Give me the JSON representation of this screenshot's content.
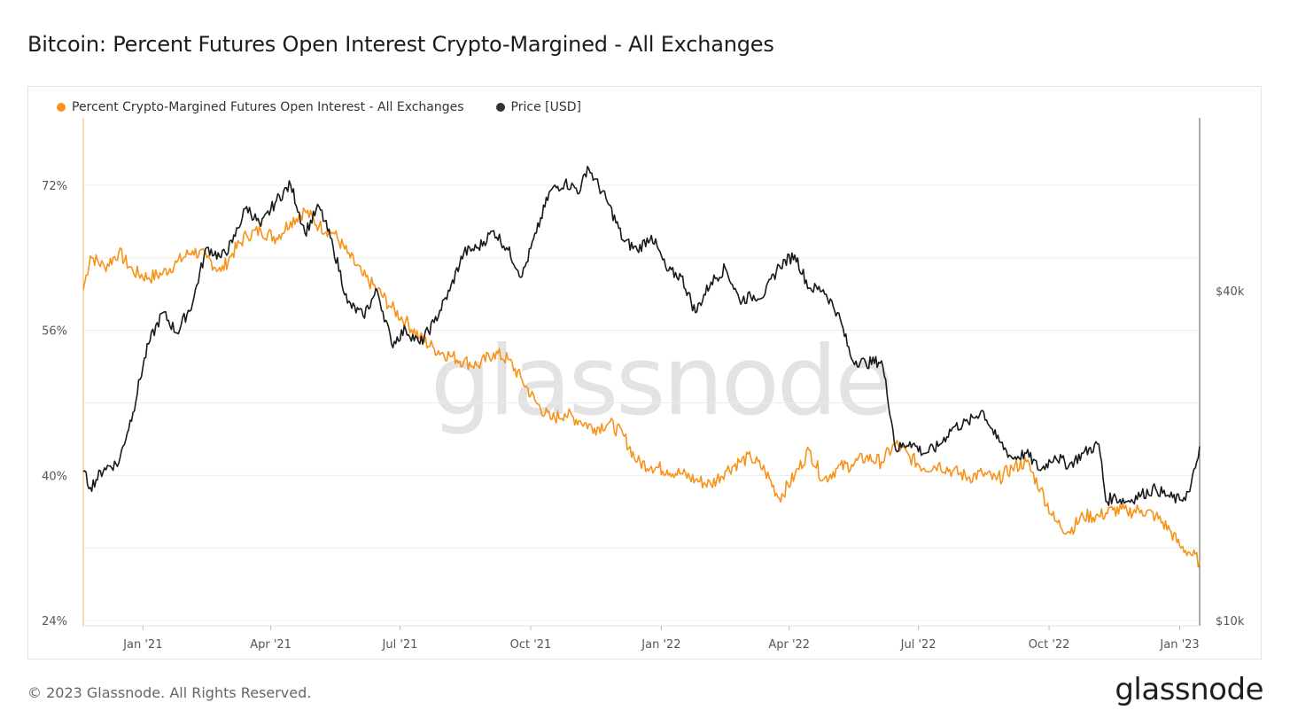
{
  "page": {
    "title": "Bitcoin: Percent Futures Open Interest Crypto-Margined - All Exchanges",
    "footer": "© 2023 Glassnode. All Rights Reserved.",
    "logo": "glassnode",
    "watermark": "glassnode"
  },
  "colors": {
    "oi_series": "#f7931a",
    "price_series": "#1a1a1a",
    "grid": "#ececec",
    "axis_text": "#555555"
  },
  "chart_data": {
    "type": "line",
    "title": "Bitcoin: Percent Futures Open Interest Crypto-Margined - All Exchanges",
    "legend_position": "top-left",
    "grid": true,
    "x_range": [
      "2020-11-20",
      "2023-01-15"
    ],
    "x_ticks": [
      {
        "date": "2021-01-01",
        "label": "Jan '21"
      },
      {
        "date": "2021-04-01",
        "label": "Apr '21"
      },
      {
        "date": "2021-07-01",
        "label": "Jul '21"
      },
      {
        "date": "2021-10-01",
        "label": "Oct '21"
      },
      {
        "date": "2022-01-01",
        "label": "Jan '22"
      },
      {
        "date": "2022-04-01",
        "label": "Apr '22"
      },
      {
        "date": "2022-07-01",
        "label": "Jul '22"
      },
      {
        "date": "2022-10-01",
        "label": "Oct '22"
      },
      {
        "date": "2023-01-01",
        "label": "Jan '23"
      }
    ],
    "y_left": {
      "unit": "%",
      "range": [
        24,
        72
      ],
      "ticks": [
        {
          "value": 24,
          "label": "24%"
        },
        {
          "value": 40,
          "label": "40%"
        },
        {
          "value": 56,
          "label": "56%"
        },
        {
          "value": 72,
          "label": "72%"
        }
      ]
    },
    "y_right": {
      "unit": "USD",
      "scale": "log",
      "range": [
        10000,
        70000
      ],
      "ticks": [
        {
          "value": 10000,
          "label": "$10k"
        },
        {
          "value": 40000,
          "label": "$40k"
        }
      ]
    },
    "series": [
      {
        "name": "Percent Crypto-Margined Futures Open Interest - All Exchanges",
        "axis": "left",
        "points": [
          [
            "2020-11-20",
            60.5
          ],
          [
            "2020-11-25",
            64.2
          ],
          [
            "2020-12-05",
            63.0
          ],
          [
            "2020-12-15",
            64.6
          ],
          [
            "2020-12-25",
            62.5
          ],
          [
            "2021-01-05",
            61.8
          ],
          [
            "2021-01-15",
            62.3
          ],
          [
            "2021-01-25",
            63.5
          ],
          [
            "2021-02-05",
            64.8
          ],
          [
            "2021-02-15",
            64.0
          ],
          [
            "2021-02-25",
            62.5
          ],
          [
            "2021-03-05",
            64.5
          ],
          [
            "2021-03-15",
            66.5
          ],
          [
            "2021-03-25",
            67.0
          ],
          [
            "2021-04-05",
            66.2
          ],
          [
            "2021-04-15",
            68.0
          ],
          [
            "2021-04-25",
            69.2
          ],
          [
            "2021-05-05",
            67.5
          ],
          [
            "2021-05-15",
            66.8
          ],
          [
            "2021-05-25",
            64.5
          ],
          [
            "2021-06-05",
            62.0
          ],
          [
            "2021-06-15",
            60.5
          ],
          [
            "2021-06-25",
            58.5
          ],
          [
            "2021-07-05",
            57.0
          ],
          [
            "2021-07-15",
            55.2
          ],
          [
            "2021-07-25",
            54.0
          ],
          [
            "2021-08-05",
            53.2
          ],
          [
            "2021-08-15",
            52.6
          ],
          [
            "2021-08-25",
            52.1
          ],
          [
            "2021-09-05",
            53.5
          ],
          [
            "2021-09-15",
            52.8
          ],
          [
            "2021-09-25",
            50.5
          ],
          [
            "2021-10-05",
            48.0
          ],
          [
            "2021-10-15",
            46.2
          ],
          [
            "2021-10-25",
            46.8
          ],
          [
            "2021-11-05",
            46.0
          ],
          [
            "2021-11-15",
            45.2
          ],
          [
            "2021-11-25",
            45.8
          ],
          [
            "2021-12-05",
            44.5
          ],
          [
            "2021-12-15",
            41.5
          ],
          [
            "2021-12-25",
            41.0
          ],
          [
            "2022-01-05",
            40.6
          ],
          [
            "2022-01-15",
            40.2
          ],
          [
            "2022-01-25",
            39.5
          ],
          [
            "2022-02-05",
            39.0
          ],
          [
            "2022-02-15",
            40.5
          ],
          [
            "2022-02-25",
            41.5
          ],
          [
            "2022-03-05",
            42.0
          ],
          [
            "2022-03-15",
            40.5
          ],
          [
            "2022-03-25",
            37.5
          ],
          [
            "2022-04-05",
            40.0
          ],
          [
            "2022-04-15",
            42.8
          ],
          [
            "2022-04-25",
            39.5
          ],
          [
            "2022-05-05",
            40.8
          ],
          [
            "2022-05-15",
            41.2
          ],
          [
            "2022-05-25",
            42.0
          ],
          [
            "2022-06-05",
            41.5
          ],
          [
            "2022-06-15",
            43.5
          ],
          [
            "2022-06-25",
            42.0
          ],
          [
            "2022-07-05",
            40.8
          ],
          [
            "2022-07-15",
            41.2
          ],
          [
            "2022-07-25",
            40.5
          ],
          [
            "2022-08-05",
            39.8
          ],
          [
            "2022-08-15",
            40.2
          ],
          [
            "2022-08-25",
            39.5
          ],
          [
            "2022-09-05",
            40.8
          ],
          [
            "2022-09-15",
            41.5
          ],
          [
            "2022-09-25",
            38.5
          ],
          [
            "2022-10-05",
            35.0
          ],
          [
            "2022-10-15",
            33.8
          ],
          [
            "2022-10-25",
            35.5
          ],
          [
            "2022-11-05",
            35.5
          ],
          [
            "2022-11-15",
            36.2
          ],
          [
            "2022-11-25",
            36.0
          ],
          [
            "2022-12-05",
            36.2
          ],
          [
            "2022-12-15",
            35.5
          ],
          [
            "2022-12-25",
            34.0
          ],
          [
            "2023-01-01",
            32.2
          ],
          [
            "2023-01-08",
            31.5
          ],
          [
            "2023-01-15",
            30.5
          ]
        ]
      },
      {
        "name": "Price [USD]",
        "axis": "right",
        "points": [
          [
            "2020-11-20",
            18700
          ],
          [
            "2020-11-25",
            17500
          ],
          [
            "2020-12-05",
            19000
          ],
          [
            "2020-12-15",
            19400
          ],
          [
            "2020-12-25",
            24000
          ],
          [
            "2021-01-05",
            32000
          ],
          [
            "2021-01-15",
            36500
          ],
          [
            "2021-01-25",
            33500
          ],
          [
            "2021-02-05",
            38000
          ],
          [
            "2021-02-15",
            48000
          ],
          [
            "2021-02-25",
            46000
          ],
          [
            "2021-03-05",
            49000
          ],
          [
            "2021-03-15",
            57000
          ],
          [
            "2021-03-25",
            52500
          ],
          [
            "2021-04-05",
            58500
          ],
          [
            "2021-04-15",
            62500
          ],
          [
            "2021-04-25",
            51000
          ],
          [
            "2021-05-05",
            57000
          ],
          [
            "2021-05-15",
            48000
          ],
          [
            "2021-05-25",
            38000
          ],
          [
            "2021-06-05",
            36000
          ],
          [
            "2021-06-15",
            40000
          ],
          [
            "2021-06-25",
            32000
          ],
          [
            "2021-07-05",
            34000
          ],
          [
            "2021-07-15",
            32000
          ],
          [
            "2021-07-25",
            35000
          ],
          [
            "2021-08-05",
            40000
          ],
          [
            "2021-08-15",
            47000
          ],
          [
            "2021-08-25",
            48000
          ],
          [
            "2021-09-05",
            51500
          ],
          [
            "2021-09-15",
            47500
          ],
          [
            "2021-09-25",
            42500
          ],
          [
            "2021-10-05",
            51000
          ],
          [
            "2021-10-15",
            61000
          ],
          [
            "2021-10-25",
            63000
          ],
          [
            "2021-11-05",
            61000
          ],
          [
            "2021-11-10",
            67500
          ],
          [
            "2021-11-15",
            64000
          ],
          [
            "2021-11-25",
            57500
          ],
          [
            "2021-12-05",
            49500
          ],
          [
            "2021-12-15",
            47500
          ],
          [
            "2021-12-25",
            50500
          ],
          [
            "2022-01-05",
            43500
          ],
          [
            "2022-01-15",
            42500
          ],
          [
            "2022-01-25",
            36500
          ],
          [
            "2022-02-05",
            41500
          ],
          [
            "2022-02-15",
            44000
          ],
          [
            "2022-02-25",
            38500
          ],
          [
            "2022-03-05",
            39000
          ],
          [
            "2022-03-15",
            39500
          ],
          [
            "2022-03-25",
            44500
          ],
          [
            "2022-04-05",
            46500
          ],
          [
            "2022-04-15",
            40500
          ],
          [
            "2022-04-25",
            40200
          ],
          [
            "2022-05-05",
            36500
          ],
          [
            "2022-05-15",
            30000
          ],
          [
            "2022-05-25",
            29500
          ],
          [
            "2022-06-05",
            29800
          ],
          [
            "2022-06-15",
            20500
          ],
          [
            "2022-06-25",
            21200
          ],
          [
            "2022-07-05",
            20200
          ],
          [
            "2022-07-15",
            20800
          ],
          [
            "2022-07-25",
            22500
          ],
          [
            "2022-08-05",
            23000
          ],
          [
            "2022-08-15",
            24200
          ],
          [
            "2022-08-25",
            21500
          ],
          [
            "2022-09-05",
            19800
          ],
          [
            "2022-09-15",
            20200
          ],
          [
            "2022-09-25",
            18800
          ],
          [
            "2022-10-05",
            20000
          ],
          [
            "2022-10-15",
            19200
          ],
          [
            "2022-10-25",
            20200
          ],
          [
            "2022-11-05",
            21000
          ],
          [
            "2022-11-10",
            16500
          ],
          [
            "2022-11-15",
            16800
          ],
          [
            "2022-11-25",
            16500
          ],
          [
            "2022-12-05",
            17000
          ],
          [
            "2022-12-15",
            17400
          ],
          [
            "2022-12-25",
            16800
          ],
          [
            "2023-01-01",
            16600
          ],
          [
            "2023-01-08",
            17200
          ],
          [
            "2023-01-12",
            19000
          ],
          [
            "2023-01-15",
            20800
          ]
        ]
      }
    ]
  },
  "legend": [
    {
      "label": "Percent Crypto-Margined Futures Open Interest - All Exchanges",
      "color": "#f7931a"
    },
    {
      "label": "Price [USD]",
      "color": "#333333"
    }
  ]
}
